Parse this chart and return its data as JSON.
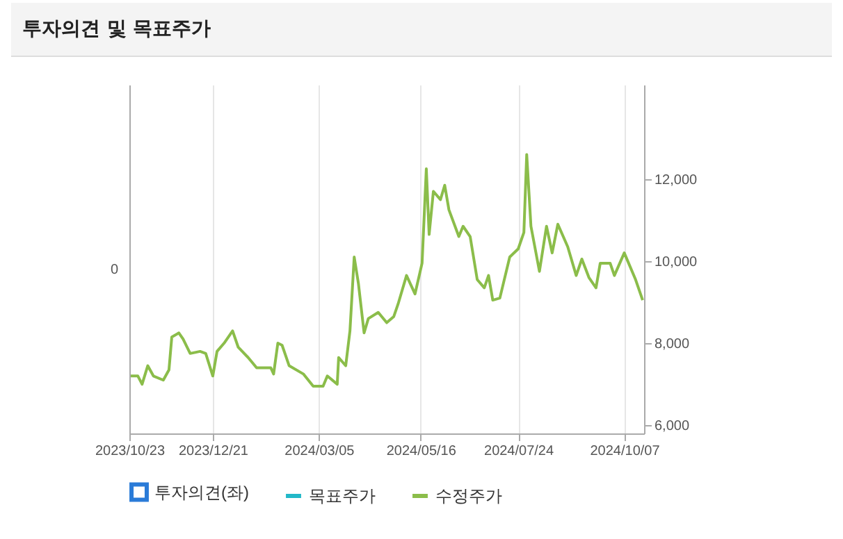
{
  "chart_data": {
    "type": "line",
    "title": "투자의견 및 목표주가",
    "legend": "bottom",
    "grid": "x",
    "xlim": [
      "2023-10-23",
      "2024-10-21"
    ],
    "xticks": [
      {
        "value": "2023-10-23",
        "label": "2023/10/23"
      },
      {
        "value": "2023-12-21",
        "label": "2023/12/21"
      },
      {
        "value": "2024-03-05",
        "label": "2024/03/05"
      },
      {
        "value": "2024-05-16",
        "label": "2024/05/16"
      },
      {
        "value": "2024-07-24",
        "label": "2024/07/24"
      },
      {
        "value": "2024-10-07",
        "label": "2024/10/07"
      }
    ],
    "annotations": [
      "0"
    ],
    "y2lim": [
      5800,
      14300
    ],
    "y2ticks": [
      {
        "value": 6000,
        "label": "6,000"
      },
      {
        "value": 8000,
        "label": "8,000"
      },
      {
        "value": 10000,
        "label": "10,000"
      },
      {
        "value": 12000,
        "label": "12,000"
      }
    ],
    "x": [
      "2023-10-24",
      "2023-10-29",
      "2023-11-01",
      "2023-11-05",
      "2023-11-09",
      "2023-11-16",
      "2023-11-20",
      "2023-11-22",
      "2023-11-27",
      "2023-11-30",
      "2023-12-05",
      "2023-12-12",
      "2023-12-16",
      "2023-12-21",
      "2023-12-24",
      "2023-12-29",
      "2024-01-04",
      "2024-01-08",
      "2024-01-15",
      "2024-01-21",
      "2024-01-31",
      "2024-02-02",
      "2024-02-05",
      "2024-02-08",
      "2024-02-13",
      "2024-02-23",
      "2024-03-01",
      "2024-03-08",
      "2024-03-11",
      "2024-03-18",
      "2024-03-19",
      "2024-03-24",
      "2024-03-27",
      "2024-03-30",
      "2024-04-02",
      "2024-04-06",
      "2024-04-09",
      "2024-04-16",
      "2024-04-22",
      "2024-04-27",
      "2024-04-30",
      "2024-05-06",
      "2024-05-12",
      "2024-05-17",
      "2024-05-20",
      "2024-05-22",
      "2024-05-25",
      "2024-05-30",
      "2024-06-02",
      "2024-06-05",
      "2024-06-12",
      "2024-06-15",
      "2024-06-20",
      "2024-06-25",
      "2024-06-30",
      "2024-07-03",
      "2024-07-06",
      "2024-07-11",
      "2024-07-18",
      "2024-07-24",
      "2024-07-28",
      "2024-07-30",
      "2024-08-02",
      "2024-08-08",
      "2024-08-13",
      "2024-08-17",
      "2024-08-21",
      "2024-08-28",
      "2024-09-03",
      "2024-09-07",
      "2024-09-12",
      "2024-09-17",
      "2024-09-20",
      "2024-09-27",
      "2024-09-30",
      "2024-10-07",
      "2024-10-15",
      "2024-10-20"
    ],
    "series": [
      {
        "name": "투자의견(좌)",
        "type": "bar",
        "axis": "y",
        "color": "#2a7bd8",
        "values": [
          null,
          null,
          null,
          null,
          null,
          null,
          null,
          null,
          null,
          null,
          null,
          null,
          null,
          null,
          null,
          null,
          null,
          null,
          null,
          null,
          null,
          null,
          null,
          null,
          null,
          null,
          null,
          null,
          null,
          null,
          null,
          null,
          null,
          null,
          null,
          null,
          null,
          null,
          null,
          null,
          null,
          null,
          null,
          null,
          null,
          null,
          null,
          null,
          null,
          null,
          null,
          null,
          null,
          null,
          null,
          null,
          null,
          null,
          null,
          null,
          null,
          null,
          null,
          null,
          null,
          null,
          null,
          null,
          null,
          null,
          null,
          null,
          null,
          null,
          null,
          null,
          null,
          null
        ]
      },
      {
        "name": "목표주가",
        "type": "line",
        "axis": "y2",
        "color": "#22b8c8",
        "values": [
          null,
          null,
          null,
          null,
          null,
          null,
          null,
          null,
          null,
          null,
          null,
          null,
          null,
          null,
          null,
          null,
          null,
          null,
          null,
          null,
          null,
          null,
          null,
          null,
          null,
          null,
          null,
          null,
          null,
          null,
          null,
          null,
          null,
          null,
          null,
          null,
          null,
          null,
          null,
          null,
          null,
          null,
          null,
          null,
          null,
          null,
          null,
          null,
          null,
          null,
          null,
          null,
          null,
          null,
          null,
          null,
          null,
          null,
          null,
          null,
          null,
          null,
          null,
          null,
          null,
          null,
          null,
          null,
          null,
          null,
          null,
          null,
          null,
          null,
          null,
          null,
          null,
          null
        ]
      },
      {
        "name": "수정주가",
        "axis": "y2",
        "color": "#8bbd4a",
        "values": [
          7200,
          7200,
          7000,
          7450,
          7200,
          7100,
          7350,
          8150,
          8250,
          8100,
          7750,
          7800,
          7750,
          7200,
          7800,
          8000,
          8300,
          7900,
          7650,
          7400,
          7400,
          7250,
          8000,
          7950,
          7450,
          7250,
          6950,
          6950,
          7200,
          7000,
          7650,
          7450,
          8300,
          10100,
          9450,
          8250,
          8600,
          8750,
          8500,
          8650,
          8950,
          9650,
          9200,
          9950,
          12250,
          10650,
          11700,
          11500,
          11850,
          11250,
          10600,
          10850,
          10600,
          9550,
          9350,
          9650,
          9050,
          9100,
          10100,
          10300,
          10700,
          12600,
          10850,
          9750,
          10850,
          10200,
          10900,
          10350,
          9650,
          10050,
          9600,
          9350,
          9950,
          9950,
          9650,
          10200,
          9550,
          9050
        ]
      }
    ]
  }
}
